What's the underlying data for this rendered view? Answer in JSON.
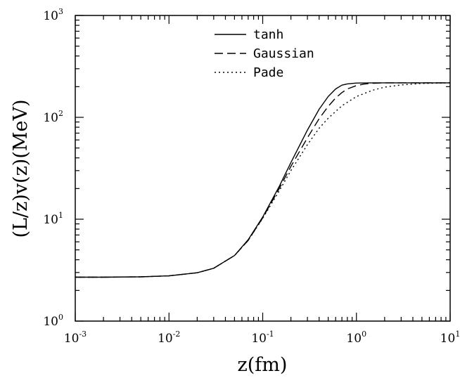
{
  "chart_data": {
    "type": "line",
    "xscale": "log",
    "yscale": "log",
    "xlabel": "z(fm)",
    "ylabel": "(L/z)v(z)(MeV)",
    "xlim": [
      0.001,
      10
    ],
    "ylim": [
      1,
      1000
    ],
    "xticks": [
      {
        "base": "10",
        "exp": "-3",
        "value": 0.001
      },
      {
        "base": "10",
        "exp": "-2",
        "value": 0.01
      },
      {
        "base": "10",
        "exp": "-1",
        "value": 0.1
      },
      {
        "base": "10",
        "exp": "0",
        "value": 1
      },
      {
        "base": "10",
        "exp": "1",
        "value": 10
      }
    ],
    "yticks": [
      {
        "base": "10",
        "exp": "0",
        "value": 1
      },
      {
        "base": "10",
        "exp": "1",
        "value": 10
      },
      {
        "base": "10",
        "exp": "2",
        "value": 100
      },
      {
        "base": "10",
        "exp": "3",
        "value": 1000
      }
    ],
    "legend_position": "top-center",
    "series": [
      {
        "name": "tanh",
        "dash": "solid",
        "x": [
          0.001,
          0.002,
          0.005,
          0.01,
          0.02,
          0.03,
          0.05,
          0.07,
          0.1,
          0.15,
          0.2,
          0.3,
          0.4,
          0.5,
          0.6,
          0.7,
          0.8,
          1.0,
          1.5,
          2,
          5,
          10
        ],
        "y": [
          2.7,
          2.7,
          2.72,
          2.78,
          2.98,
          3.3,
          4.4,
          6.3,
          10.5,
          21,
          36,
          75,
          120,
          160,
          190,
          207,
          213,
          217,
          218,
          218,
          218,
          218
        ]
      },
      {
        "name": "Gaussian",
        "dash": "dashed",
        "x": [
          0.001,
          0.002,
          0.005,
          0.01,
          0.02,
          0.03,
          0.05,
          0.07,
          0.1,
          0.15,
          0.2,
          0.3,
          0.4,
          0.5,
          0.6,
          0.7,
          0.8,
          1.0,
          1.2,
          1.5,
          2,
          5,
          10
        ],
        "y": [
          2.7,
          2.7,
          2.72,
          2.78,
          2.98,
          3.3,
          4.4,
          6.2,
          10.3,
          20,
          33,
          63,
          97,
          128,
          155,
          175,
          190,
          205,
          212,
          216,
          218,
          218,
          218
        ]
      },
      {
        "name": "Pade",
        "dash": "dotted",
        "x": [
          0.001,
          0.002,
          0.005,
          0.01,
          0.02,
          0.03,
          0.05,
          0.07,
          0.1,
          0.15,
          0.2,
          0.3,
          0.4,
          0.5,
          0.7,
          1.0,
          1.5,
          2,
          3,
          5,
          10
        ],
        "y": [
          2.7,
          2.7,
          2.72,
          2.78,
          2.98,
          3.3,
          4.4,
          6.2,
          10.2,
          19,
          30,
          54,
          78,
          98,
          130,
          160,
          185,
          198,
          208,
          215,
          218
        ]
      }
    ]
  }
}
